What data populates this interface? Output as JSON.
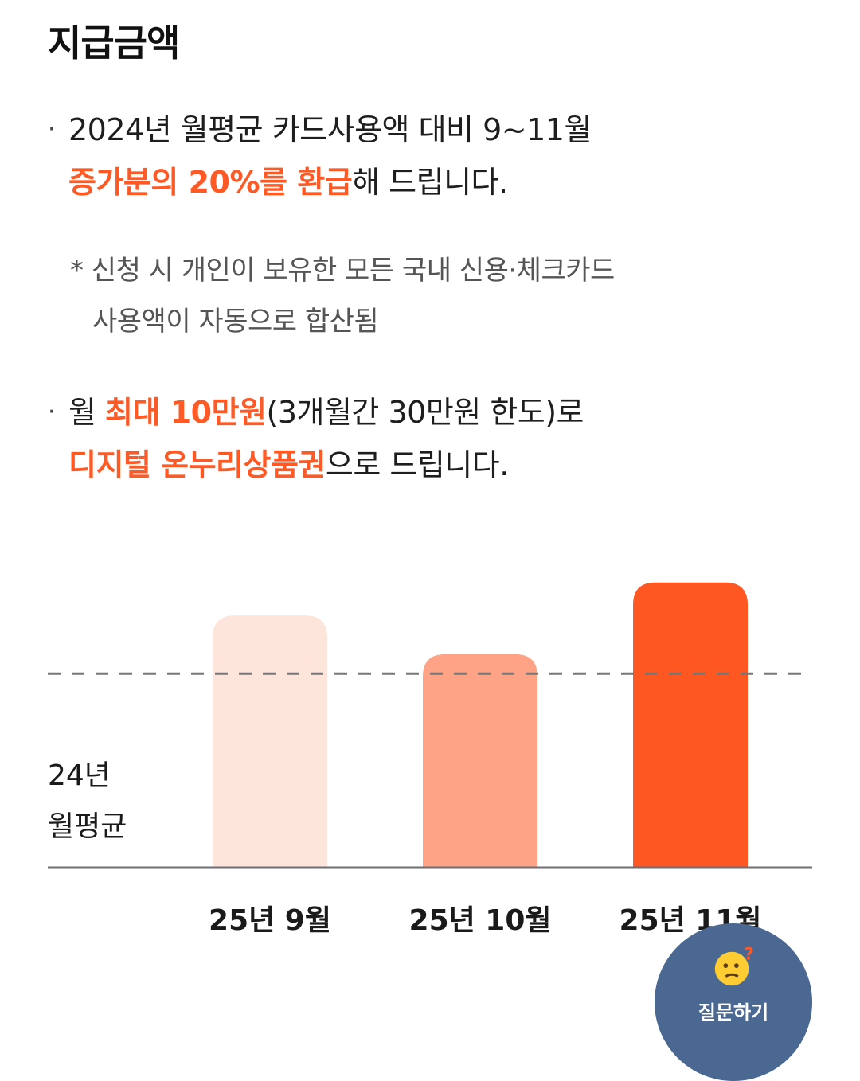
{
  "section": {
    "title": "지급금액"
  },
  "bullet1": {
    "dot": "·",
    "line1": "2024년 월평균 카드사용액 대비 9~11월",
    "line2_highlight": "증가분의 20%를 환급",
    "line2_rest": "해 드립니다."
  },
  "note": {
    "line1": "* 신청 시 개인이 보유한 모든 국내 신용·체크카드",
    "line2": "사용액이 자동으로 합산됨"
  },
  "bullet2": {
    "dot": "·",
    "line1_pre": "월 ",
    "line1_highlight": "최대 10만원",
    "line1_rest": "(3개월간 30만원 한도)로",
    "line2_highlight": "디지털 온누리상품권",
    "line2_rest": "으로 드립니다."
  },
  "chart_data": {
    "type": "bar",
    "categories": [
      "25년 9월",
      "25년 10월",
      "25년 11월"
    ],
    "values": [
      1.3,
      1.1,
      1.47
    ],
    "baseline_value": 1.0,
    "baseline_label_line1": "24년",
    "baseline_label_line2": "월평균",
    "colors": [
      "#fee5dc",
      "#ffa387",
      "#ff5722"
    ],
    "ylim": [
      0,
      1.6
    ],
    "grid": false
  },
  "fab": {
    "icon": "thinking-emoji-icon",
    "label": "질문하기"
  }
}
